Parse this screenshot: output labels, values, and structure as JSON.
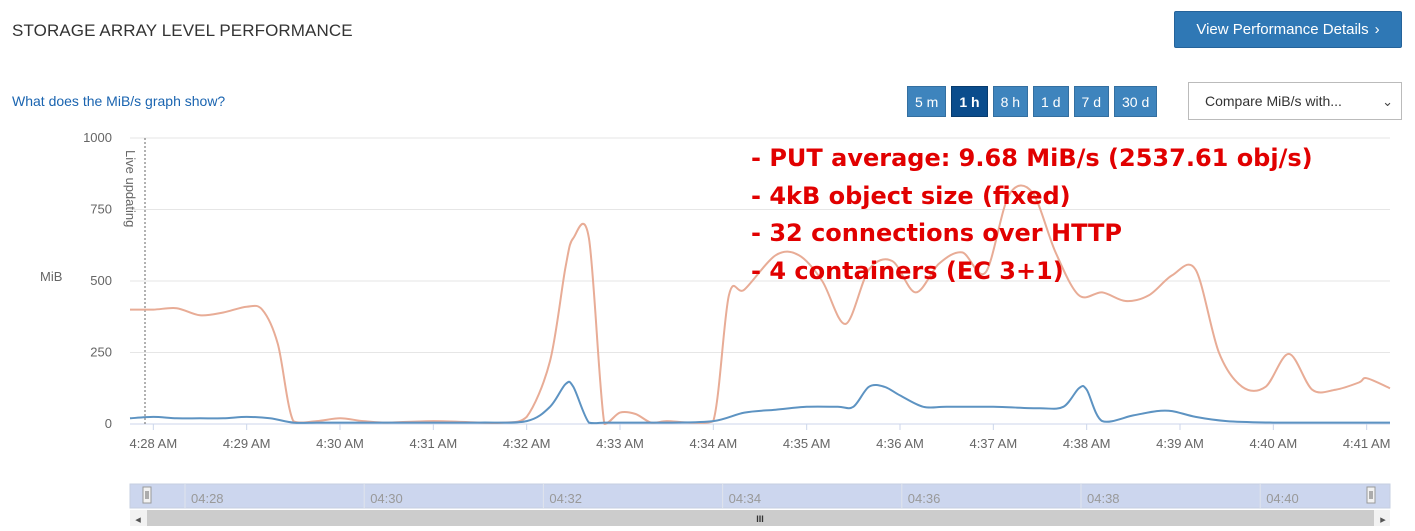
{
  "header": {
    "title": "STORAGE ARRAY LEVEL PERFORMANCE",
    "details_button": "View Performance Details",
    "details_chevron": "›"
  },
  "help_link": "What does the MiB/s graph show?",
  "time_ranges": [
    {
      "label": "5 m",
      "active": false
    },
    {
      "label": "1 h",
      "active": true
    },
    {
      "label": "8 h",
      "active": false
    },
    {
      "label": "1 d",
      "active": false
    },
    {
      "label": "7 d",
      "active": false
    },
    {
      "label": "30 d",
      "active": false
    }
  ],
  "compare_select": {
    "value": "Compare MiB/s with...",
    "caret": "⌄"
  },
  "annotation": [
    "- PUT average: 9.68 MiB/s (2537.61 obj/s)",
    "- 4kB object size (fixed)",
    "- 32 connections over HTTP",
    "- 4 containers (EC 3+1)"
  ],
  "navigator": {
    "ticks": [
      "04:28",
      "04:30",
      "04:32",
      "04:34",
      "04:36",
      "04:38",
      "04:40"
    ],
    "left_arrow": "◂",
    "right_arrow": "▸",
    "grip": "III"
  },
  "chart_data": {
    "type": "line",
    "ylabel": "MiB",
    "ylim": [
      0,
      1000
    ],
    "yticks": [
      0,
      250,
      500,
      750,
      1000
    ],
    "live_label": "Live updating",
    "xlim": [
      "4:27:45",
      "4:41:15"
    ],
    "xticks": [
      "4:28 AM",
      "4:29 AM",
      "4:30 AM",
      "4:31 AM",
      "4:32 AM",
      "4:33 AM",
      "4:34 AM",
      "4:35 AM",
      "4:36 AM",
      "4:37 AM",
      "4:38 AM",
      "4:39 AM",
      "4:40 AM",
      "4:41 AM"
    ],
    "grid": true,
    "series": [
      {
        "color": "#e8ac96",
        "x": [
          "4:27:45",
          "4:28:00",
          "4:28:15",
          "4:28:30",
          "4:28:45",
          "4:29:00",
          "4:29:10",
          "4:29:20",
          "4:29:30",
          "4:29:45",
          "4:30:00",
          "4:30:15",
          "4:30:30",
          "4:31:00",
          "4:31:30",
          "4:31:45",
          "4:32:00",
          "4:32:15",
          "4:32:25",
          "4:32:30",
          "4:32:40",
          "4:32:50",
          "4:33:00",
          "4:33:10",
          "4:33:20",
          "4:33:30",
          "4:33:45",
          "4:34:00",
          "4:34:10",
          "4:34:20",
          "4:34:40",
          "4:34:55",
          "4:35:10",
          "4:35:25",
          "4:35:40",
          "4:35:55",
          "4:36:10",
          "4:36:25",
          "4:36:40",
          "4:36:55",
          "4:37:10",
          "4:37:25",
          "4:37:40",
          "4:37:55",
          "4:38:10",
          "4:38:25",
          "4:38:40",
          "4:38:55",
          "4:39:10",
          "4:39:25",
          "4:39:40",
          "4:39:55",
          "4:40:10",
          "4:40:25",
          "4:40:40",
          "4:40:55",
          "4:41:00",
          "4:41:15"
        ],
        "values": [
          400,
          400,
          405,
          380,
          390,
          410,
          400,
          280,
          10,
          10,
          20,
          10,
          5,
          10,
          5,
          5,
          25,
          220,
          550,
          650,
          650,
          0,
          40,
          35,
          5,
          10,
          5,
          10,
          450,
          470,
          590,
          590,
          500,
          350,
          540,
          570,
          460,
          560,
          600,
          530,
          800,
          810,
          600,
          450,
          460,
          430,
          450,
          520,
          540,
          250,
          130,
          130,
          245,
          120,
          120,
          145,
          160,
          125
        ]
      },
      {
        "color": "#5d93c2",
        "x": [
          "4:27:45",
          "4:28:00",
          "4:28:15",
          "4:28:30",
          "4:28:45",
          "4:29:00",
          "4:29:15",
          "4:29:30",
          "4:29:45",
          "4:30:00",
          "4:30:30",
          "4:31:00",
          "4:31:30",
          "4:32:00",
          "4:32:15",
          "4:32:25",
          "4:32:30",
          "4:32:40",
          "4:32:50",
          "4:33:00",
          "4:33:30",
          "4:34:00",
          "4:34:20",
          "4:34:40",
          "4:35:00",
          "4:35:20",
          "4:35:30",
          "4:35:40",
          "4:35:50",
          "4:36:00",
          "4:36:15",
          "4:36:30",
          "4:37:00",
          "4:37:30",
          "4:37:45",
          "4:37:55",
          "4:38:00",
          "4:38:10",
          "4:38:30",
          "4:38:45",
          "4:38:55",
          "4:39:10",
          "4:39:30",
          "4:40:00",
          "4:40:30",
          "4:41:00",
          "4:41:15"
        ],
        "values": [
          20,
          25,
          20,
          20,
          20,
          25,
          20,
          5,
          5,
          5,
          5,
          5,
          5,
          10,
          60,
          140,
          130,
          5,
          5,
          5,
          5,
          10,
          40,
          50,
          60,
          60,
          60,
          130,
          130,
          100,
          60,
          60,
          60,
          55,
          60,
          125,
          120,
          10,
          30,
          45,
          45,
          25,
          10,
          5,
          5,
          5,
          5
        ]
      }
    ]
  }
}
